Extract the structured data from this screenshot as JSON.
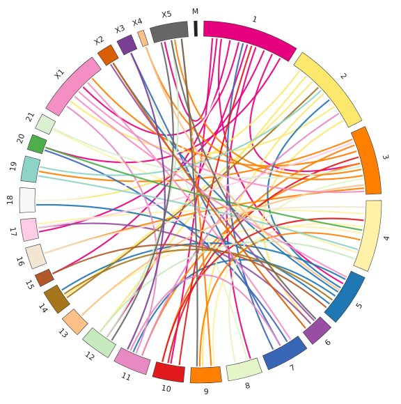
{
  "chart_data": {
    "type": "chord",
    "segments": [
      {
        "name": "1",
        "color": "#e7007d",
        "size": 31
      },
      {
        "name": "2",
        "color": "#fde86e",
        "size": 29
      },
      {
        "name": "3",
        "color": "#ff7f00",
        "size": 22
      },
      {
        "name": "4",
        "color": "#fff2a8",
        "size": 23
      },
      {
        "name": "5",
        "color": "#1f78b4",
        "size": 17
      },
      {
        "name": "6",
        "color": "#984ea3",
        "size": 8
      },
      {
        "name": "7",
        "color": "#3a67b5",
        "size": 14
      },
      {
        "name": "8",
        "color": "#e5f5c8",
        "size": 11
      },
      {
        "name": "9",
        "color": "#ff7f00",
        "size": 10
      },
      {
        "name": "10",
        "color": "#e31a1c",
        "size": 10
      },
      {
        "name": "11",
        "color": "#e78ac3",
        "size": 11
      },
      {
        "name": "12",
        "color": "#c7e9c0",
        "size": 10
      },
      {
        "name": "13",
        "color": "#fdc086",
        "size": 7
      },
      {
        "name": "14",
        "color": "#a6761d",
        "size": 8
      },
      {
        "name": "15",
        "color": "#b15928",
        "size": 4
      },
      {
        "name": "16",
        "color": "#f2e6d3",
        "size": 7
      },
      {
        "name": "17",
        "color": "#fccde5",
        "size": 7
      },
      {
        "name": "18",
        "color": "#f7f7f7",
        "size": 8
      },
      {
        "name": "19",
        "color": "#8dd3c7",
        "size": 8
      },
      {
        "name": "20",
        "color": "#4daf4a",
        "size": 5
      },
      {
        "name": "21",
        "color": "#d9f0d3",
        "size": 5
      },
      {
        "name": "X1",
        "color": "#f48fc4",
        "size": 22
      },
      {
        "name": "X2",
        "color": "#d95f02",
        "size": 5
      },
      {
        "name": "X3",
        "color": "#7b3f98",
        "size": 5
      },
      {
        "name": "X4",
        "color": "#fdc086",
        "size": 2
      },
      {
        "name": "X5",
        "color": "#666666",
        "size": 12
      },
      {
        "name": "M",
        "color": "#222222",
        "size": 1
      }
    ],
    "links": [
      [
        0,
        0.1,
        9,
        0.5
      ],
      [
        0,
        0.2,
        4,
        0.3
      ],
      [
        0,
        0.3,
        14,
        0.5
      ],
      [
        0,
        0.4,
        21,
        0.6
      ],
      [
        0,
        0.5,
        11,
        0.4
      ],
      [
        0,
        0.6,
        7,
        0.2
      ],
      [
        0,
        0.7,
        16,
        0.3
      ],
      [
        0,
        0.8,
        2,
        0.5
      ],
      [
        0,
        0.9,
        19,
        0.5
      ],
      [
        0,
        0.15,
        25,
        0.3
      ],
      [
        1,
        0.1,
        17,
        0.5
      ],
      [
        1,
        0.3,
        13,
        0.4
      ],
      [
        1,
        0.5,
        8,
        0.6
      ],
      [
        1,
        0.7,
        21,
        0.3
      ],
      [
        1,
        0.9,
        5,
        0.5
      ],
      [
        1,
        0.2,
        11,
        0.7
      ],
      [
        2,
        0.1,
        18,
        0.5
      ],
      [
        2,
        0.3,
        21,
        0.8
      ],
      [
        2,
        0.5,
        10,
        0.3
      ],
      [
        2,
        0.7,
        24,
        0.5
      ],
      [
        2,
        0.9,
        15,
        0.5
      ],
      [
        2,
        0.2,
        9,
        0.8
      ],
      [
        2,
        0.6,
        25,
        0.6
      ],
      [
        3,
        0.2,
        16,
        0.7
      ],
      [
        3,
        0.5,
        12,
        0.5
      ],
      [
        3,
        0.8,
        20,
        0.4
      ],
      [
        3,
        0.4,
        8,
        0.2
      ],
      [
        4,
        0.2,
        13,
        0.7
      ],
      [
        4,
        0.5,
        22,
        0.5
      ],
      [
        4,
        0.8,
        17,
        0.3
      ],
      [
        4,
        0.4,
        1,
        0.6
      ],
      [
        4,
        0.6,
        10,
        0.6
      ],
      [
        5,
        0.5,
        16,
        0.5
      ],
      [
        5,
        0.3,
        22,
        0.3
      ],
      [
        6,
        0.3,
        19,
        0.3
      ],
      [
        6,
        0.7,
        0,
        0.45
      ],
      [
        6,
        0.5,
        23,
        0.5
      ],
      [
        7,
        0.3,
        23,
        0.4
      ],
      [
        7,
        0.7,
        2,
        0.75
      ],
      [
        8,
        0.3,
        25,
        0.8
      ],
      [
        8,
        0.7,
        3,
        0.6
      ],
      [
        9,
        0.2,
        0,
        0.55
      ],
      [
        9,
        0.6,
        2,
        0.4
      ],
      [
        9,
        0.8,
        3,
        0.3
      ],
      [
        10,
        0.3,
        1,
        0.8
      ],
      [
        10,
        0.7,
        6,
        0.5
      ],
      [
        10,
        0.5,
        21,
        0.2
      ],
      [
        11,
        0.4,
        25,
        0.5
      ],
      [
        11,
        0.7,
        3,
        0.9
      ],
      [
        12,
        0.5,
        2,
        0.85
      ],
      [
        13,
        0.5,
        4,
        0.7
      ],
      [
        13,
        0.3,
        1,
        0.4
      ],
      [
        14,
        0.5,
        4,
        0.9
      ],
      [
        15,
        0.5,
        3,
        0.1
      ],
      [
        16,
        0.5,
        2,
        0.15
      ],
      [
        17,
        0.5,
        0,
        0.35
      ],
      [
        18,
        0.3,
        3,
        0.75
      ],
      [
        18,
        0.7,
        1,
        0.45
      ],
      [
        19,
        0.5,
        3,
        0.45
      ],
      [
        20,
        0.5,
        2,
        0.55
      ],
      [
        21,
        0.4,
        4,
        0.15
      ],
      [
        21,
        0.7,
        6,
        0.2
      ],
      [
        21,
        0.5,
        2,
        0.95
      ],
      [
        22,
        0.5,
        5,
        0.8
      ],
      [
        23,
        0.5,
        10,
        0.8
      ],
      [
        24,
        0.5,
        4,
        0.45
      ],
      [
        25,
        0.2,
        11,
        0.2
      ],
      [
        25,
        0.5,
        5,
        0.2
      ],
      [
        25,
        0.8,
        8,
        0.8
      ]
    ]
  }
}
